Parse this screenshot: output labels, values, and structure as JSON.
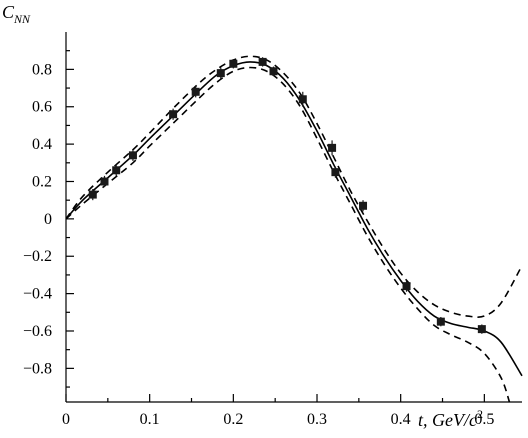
{
  "chart_data": {
    "type": "scatter",
    "ylabel": "C",
    "ylabel_sub": "NN",
    "xlabel": "t, GeV/c",
    "xlabel_sup": "2",
    "xlim": [
      0,
      0.545
    ],
    "ylim": [
      -0.98,
      1.0
    ],
    "x_ticks": [
      0,
      0.1,
      0.2,
      0.3,
      0.4,
      0.5
    ],
    "x_tick_labels": [
      "0",
      "0.1",
      "0.2",
      "0.3",
      "0.4",
      "0.5"
    ],
    "y_ticks": [
      -0.8,
      -0.6,
      -0.4,
      -0.2,
      0,
      0.2,
      0.4,
      0.6,
      0.8
    ],
    "y_tick_labels": [
      "−0.8",
      "−0.6",
      "−0.4",
      "−0.2",
      "0",
      "0.2",
      "0.4",
      "0.6",
      "0.8"
    ],
    "grid": false,
    "points": [
      {
        "x": 0.032,
        "y": 0.13,
        "err": 0.03
      },
      {
        "x": 0.046,
        "y": 0.2,
        "err": 0.03
      },
      {
        "x": 0.06,
        "y": 0.26,
        "err": 0.03
      },
      {
        "x": 0.08,
        "y": 0.34,
        "err": 0.03
      },
      {
        "x": 0.128,
        "y": 0.56,
        "err": 0.03
      },
      {
        "x": 0.155,
        "y": 0.68,
        "err": 0.03
      },
      {
        "x": 0.185,
        "y": 0.78,
        "err": 0.03
      },
      {
        "x": 0.2,
        "y": 0.83,
        "err": 0.025
      },
      {
        "x": 0.235,
        "y": 0.84,
        "err": 0.025
      },
      {
        "x": 0.248,
        "y": 0.79,
        "err": 0.025
      },
      {
        "x": 0.283,
        "y": 0.64,
        "err": 0.04
      },
      {
        "x": 0.318,
        "y": 0.38,
        "err": 0.04
      },
      {
        "x": 0.322,
        "y": 0.25,
        "err": 0.03
      },
      {
        "x": 0.355,
        "y": 0.07,
        "err": 0.03
      },
      {
        "x": 0.407,
        "y": -0.36,
        "err": 0.03
      },
      {
        "x": 0.448,
        "y": -0.55,
        "err": 0.025
      },
      {
        "x": 0.497,
        "y": -0.59,
        "err": 0.025
      }
    ],
    "curves": [
      {
        "style": "solid",
        "x": [
          0,
          0.02,
          0.05,
          0.08,
          0.1,
          0.13,
          0.16,
          0.18,
          0.2,
          0.22,
          0.24,
          0.26,
          0.28,
          0.3,
          0.32,
          0.34,
          0.36,
          0.38,
          0.4,
          0.42,
          0.44,
          0.46,
          0.48,
          0.5,
          0.52,
          0.545
        ],
        "y": [
          0.0,
          0.1,
          0.22,
          0.34,
          0.43,
          0.56,
          0.69,
          0.77,
          0.82,
          0.84,
          0.82,
          0.75,
          0.63,
          0.47,
          0.29,
          0.12,
          -0.05,
          -0.2,
          -0.33,
          -0.44,
          -0.52,
          -0.56,
          -0.58,
          -0.6,
          -0.66,
          -0.84
        ]
      },
      {
        "style": "dashed",
        "x": [
          0,
          0.02,
          0.05,
          0.08,
          0.1,
          0.13,
          0.16,
          0.18,
          0.2,
          0.22,
          0.24,
          0.26,
          0.28,
          0.3,
          0.32,
          0.34,
          0.36,
          0.38,
          0.4,
          0.42,
          0.44,
          0.46,
          0.48,
          0.5,
          0.52,
          0.545
        ],
        "y": [
          0.0,
          0.12,
          0.25,
          0.37,
          0.46,
          0.6,
          0.73,
          0.8,
          0.85,
          0.87,
          0.85,
          0.78,
          0.67,
          0.51,
          0.33,
          0.15,
          -0.01,
          -0.16,
          -0.29,
          -0.39,
          -0.46,
          -0.5,
          -0.52,
          -0.52,
          -0.45,
          -0.25
        ]
      },
      {
        "style": "dashed",
        "x": [
          0,
          0.02,
          0.05,
          0.08,
          0.1,
          0.13,
          0.16,
          0.18,
          0.2,
          0.22,
          0.24,
          0.26,
          0.28,
          0.3,
          0.32,
          0.34,
          0.36,
          0.38,
          0.4,
          0.42,
          0.44,
          0.46,
          0.48,
          0.5,
          0.52,
          0.53
        ],
        "y": [
          0.0,
          0.08,
          0.19,
          0.3,
          0.39,
          0.52,
          0.65,
          0.73,
          0.79,
          0.81,
          0.79,
          0.72,
          0.6,
          0.43,
          0.25,
          0.08,
          -0.09,
          -0.24,
          -0.37,
          -0.48,
          -0.57,
          -0.62,
          -0.66,
          -0.72,
          -0.85,
          -0.98
        ]
      }
    ]
  }
}
